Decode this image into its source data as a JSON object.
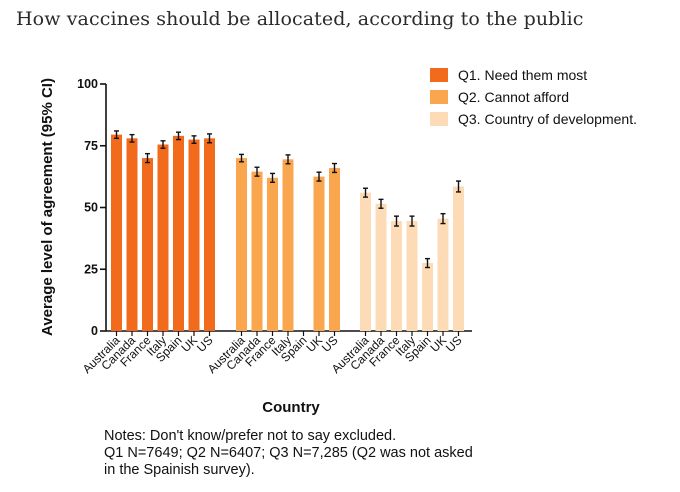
{
  "title": "How vaccines should be allocated, according to the public",
  "chart_data": {
    "type": "bar",
    "ylabel": "Average level of agreement (95% CI)",
    "xlabel": "Country",
    "ylim": [
      0,
      100
    ],
    "yticks": [
      0,
      25,
      50,
      75,
      100
    ],
    "categories": [
      "Australia",
      "Canada",
      "France",
      "Italy",
      "Spain",
      "UK",
      "US"
    ],
    "legend_position": "top-right",
    "series": [
      {
        "name": "Q1. Need them most",
        "color": "#f26a1b",
        "values": [
          79.5,
          78,
          70,
          75.5,
          79,
          77.5,
          78
        ],
        "errors": [
          1.5,
          1.5,
          1.8,
          1.5,
          1.5,
          1.5,
          1.8
        ]
      },
      {
        "name": "Q2. Cannot afford",
        "color": "#f9a64f",
        "values": [
          70,
          64.5,
          62,
          69.5,
          null,
          62.5,
          66
        ],
        "errors": [
          1.5,
          1.8,
          1.8,
          1.8,
          null,
          1.8,
          1.8
        ]
      },
      {
        "name": "Q3. Country of development.",
        "color": "#fcdbb6",
        "values": [
          56,
          51.5,
          44.5,
          44.5,
          27.5,
          45.5,
          58.5
        ],
        "errors": [
          1.8,
          1.8,
          2.0,
          2.0,
          1.8,
          2.0,
          2.2
        ]
      }
    ]
  },
  "notes": [
    "Notes:  Don't know/prefer not to say excluded.",
    "Q1 N=7649; Q2 N=6407; Q3 N=7,285 (Q2 was not asked",
    "in the Spainish survey)."
  ]
}
